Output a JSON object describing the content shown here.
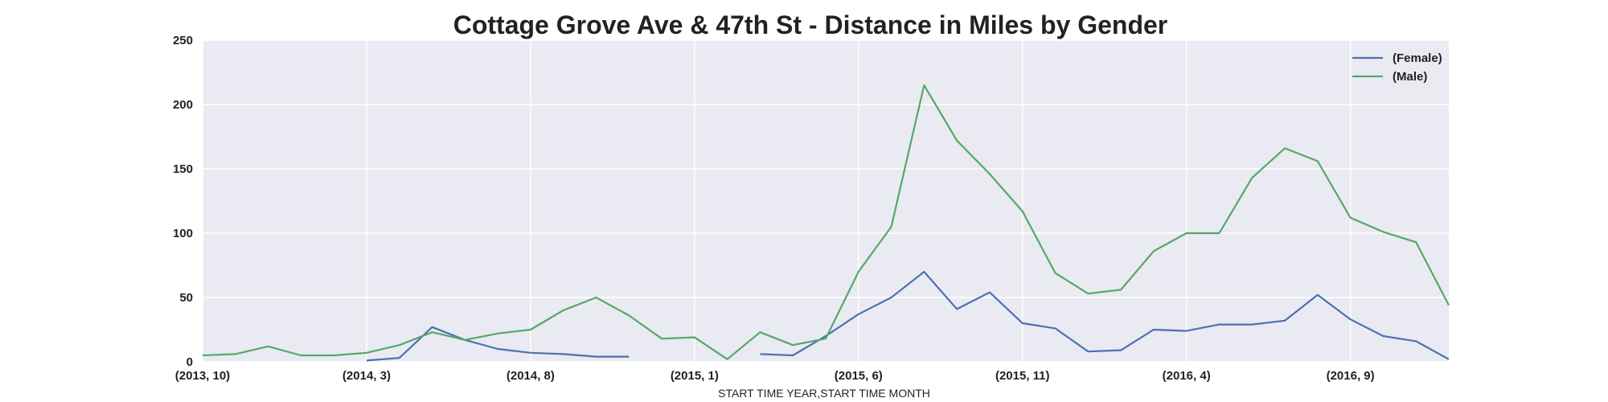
{
  "chart_data": {
    "type": "line",
    "title": "Cottage Grove Ave & 47th St - Distance in Miles by Gender",
    "xlabel": "START TIME YEAR,START TIME MONTH",
    "ylabel": "",
    "ylim": [
      0,
      250
    ],
    "yticks": [
      "0",
      "50",
      "100",
      "150",
      "200",
      "250"
    ],
    "x": [
      "(2013, 10)",
      "(2013, 11)",
      "(2013, 12)",
      "(2014, 1)",
      "(2014, 2)",
      "(2014, 3)",
      "(2014, 4)",
      "(2014, 5)",
      "(2014, 6)",
      "(2014, 7)",
      "(2014, 8)",
      "(2014, 9)",
      "(2014, 10)",
      "(2014, 11)",
      "(2014, 12)",
      "(2015, 1)",
      "(2015, 2)",
      "(2015, 3)",
      "(2015, 4)",
      "(2015, 5)",
      "(2015, 6)",
      "(2015, 7)",
      "(2015, 8)",
      "(2015, 9)",
      "(2015, 10)",
      "(2015, 11)",
      "(2015, 12)",
      "(2016, 1)",
      "(2016, 2)",
      "(2016, 3)",
      "(2016, 4)",
      "(2016, 5)",
      "(2016, 6)",
      "(2016, 7)",
      "(2016, 8)",
      "(2016, 9)",
      "(2016, 10)",
      "(2016, 11)",
      "(2016, 12)"
    ],
    "xticks": [
      "(2013, 10)",
      "(2014, 3)",
      "(2014, 8)",
      "(2015, 1)",
      "(2015, 6)",
      "(2015, 11)",
      "(2016, 4)",
      "(2016, 9)"
    ],
    "grid": true,
    "legend_position": "top-right",
    "series": [
      {
        "name": "(Female)",
        "color": "#4c72b0",
        "values": [
          null,
          null,
          null,
          null,
          null,
          1,
          3,
          27,
          17,
          10,
          7,
          6,
          4,
          4,
          null,
          null,
          null,
          6,
          5,
          20,
          37,
          50,
          70,
          41,
          54,
          30,
          26,
          8,
          9,
          25,
          24,
          29,
          29,
          32,
          52,
          33,
          20,
          16,
          2
        ]
      },
      {
        "name": "(Male)",
        "color": "#55a868",
        "values": [
          5,
          6,
          12,
          5,
          5,
          7,
          13,
          23,
          17,
          22,
          25,
          40,
          50,
          36,
          18,
          19,
          2,
          23,
          13,
          18,
          70,
          105,
          215,
          172,
          146,
          117,
          69,
          53,
          56,
          86,
          100,
          100,
          143,
          166,
          156,
          112,
          101,
          93,
          44
        ]
      }
    ]
  }
}
